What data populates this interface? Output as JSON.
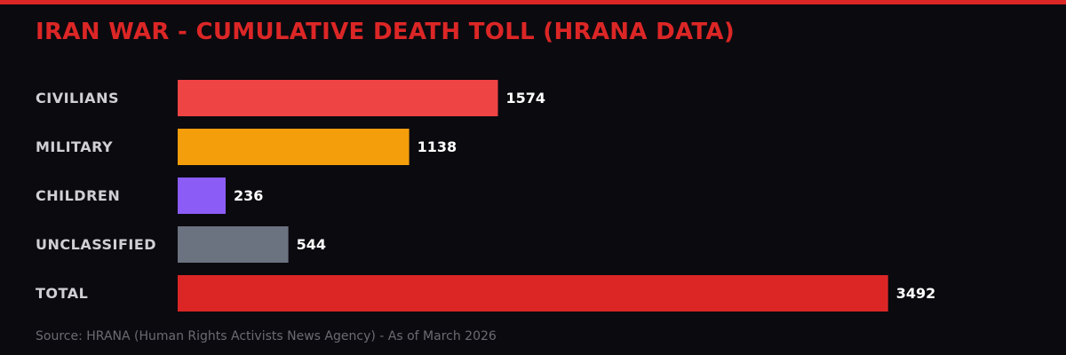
{
  "chart_data": {
    "type": "bar",
    "orientation": "horizontal",
    "title": "IRAN WAR - CUMULATIVE DEATH TOLL (HRANA DATA)",
    "categories": [
      "CIVILIANS",
      "MILITARY",
      "CHILDREN",
      "UNCLASSIFIED",
      "TOTAL"
    ],
    "values": [
      1574,
      1138,
      236,
      544,
      3492
    ],
    "colors": [
      "#ef4444",
      "#f59e0b",
      "#8b5cf6",
      "#6b7280",
      "#dc2626"
    ],
    "xlim": [
      0,
      5240
    ],
    "grid": false,
    "source": "Source: HRANA (Human Rights Activists News Agency) - As of March 2026"
  },
  "theme": {
    "background": "#0b0a0f",
    "accent": "#dc2626"
  }
}
